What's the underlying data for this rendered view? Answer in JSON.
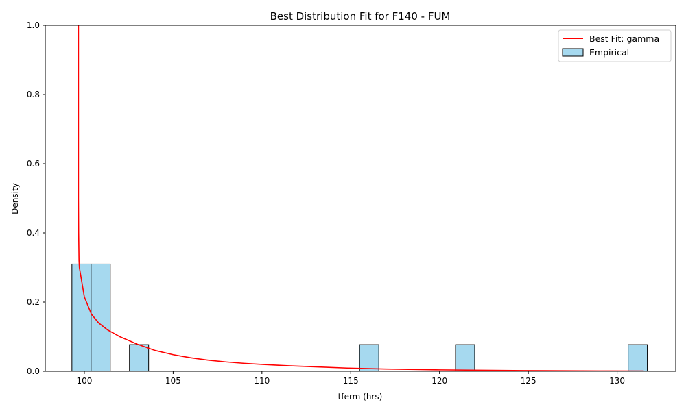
{
  "chart_data": {
    "type": "histogram",
    "title": "Best Distribution Fit for F140 - FUM",
    "xlabel": "tferm (hrs)",
    "ylabel": "Density",
    "xlim": [
      97.8,
      133.3
    ],
    "ylim": [
      0,
      1.0
    ],
    "x_ticks": [
      100,
      105,
      110,
      115,
      120,
      125,
      130
    ],
    "y_ticks": [
      0.0,
      0.2,
      0.4,
      0.6,
      0.8,
      1.0
    ],
    "x_tick_labels": [
      "100",
      "105",
      "110",
      "115",
      "120",
      "125",
      "130"
    ],
    "y_tick_labels": [
      "0.0",
      "0.2",
      "0.4",
      "0.6",
      "0.8",
      "1.0"
    ],
    "grid": false,
    "legend_position": "top-right",
    "series": [
      {
        "name": "Best Fit: gamma",
        "kind": "line",
        "color": "#ff0000",
        "x": [
          99.67,
          99.67,
          99.67,
          99.68,
          99.7,
          99.72,
          100.0,
          100.4,
          100.8,
          101.3,
          102.0,
          103.0,
          104.0,
          105.0,
          106.0,
          107.0,
          108.0,
          109.0,
          110.0,
          111.5,
          113.0,
          115.0,
          117.0,
          120.0,
          123.0,
          126.0,
          129.0,
          131.5
        ],
        "y": [
          1.0,
          0.8,
          0.5,
          0.4,
          0.32,
          0.3,
          0.215,
          0.165,
          0.14,
          0.12,
          0.1,
          0.078,
          0.06,
          0.048,
          0.039,
          0.032,
          0.027,
          0.023,
          0.02,
          0.016,
          0.013,
          0.009,
          0.0065,
          0.0042,
          0.0028,
          0.0018,
          0.0012,
          0.0008
        ]
      },
      {
        "name": "Empirical",
        "kind": "bar",
        "color": "#a6d9ef",
        "edge_color": "#000000",
        "bin_width": 1.08,
        "bins": [
          {
            "start": 99.3,
            "value": 0.31
          },
          {
            "start": 100.38,
            "value": 0.31
          },
          {
            "start": 102.54,
            "value": 0.077
          },
          {
            "start": 115.5,
            "value": 0.077
          },
          {
            "start": 120.9,
            "value": 0.077
          },
          {
            "start": 130.62,
            "value": 0.077
          }
        ]
      }
    ]
  }
}
